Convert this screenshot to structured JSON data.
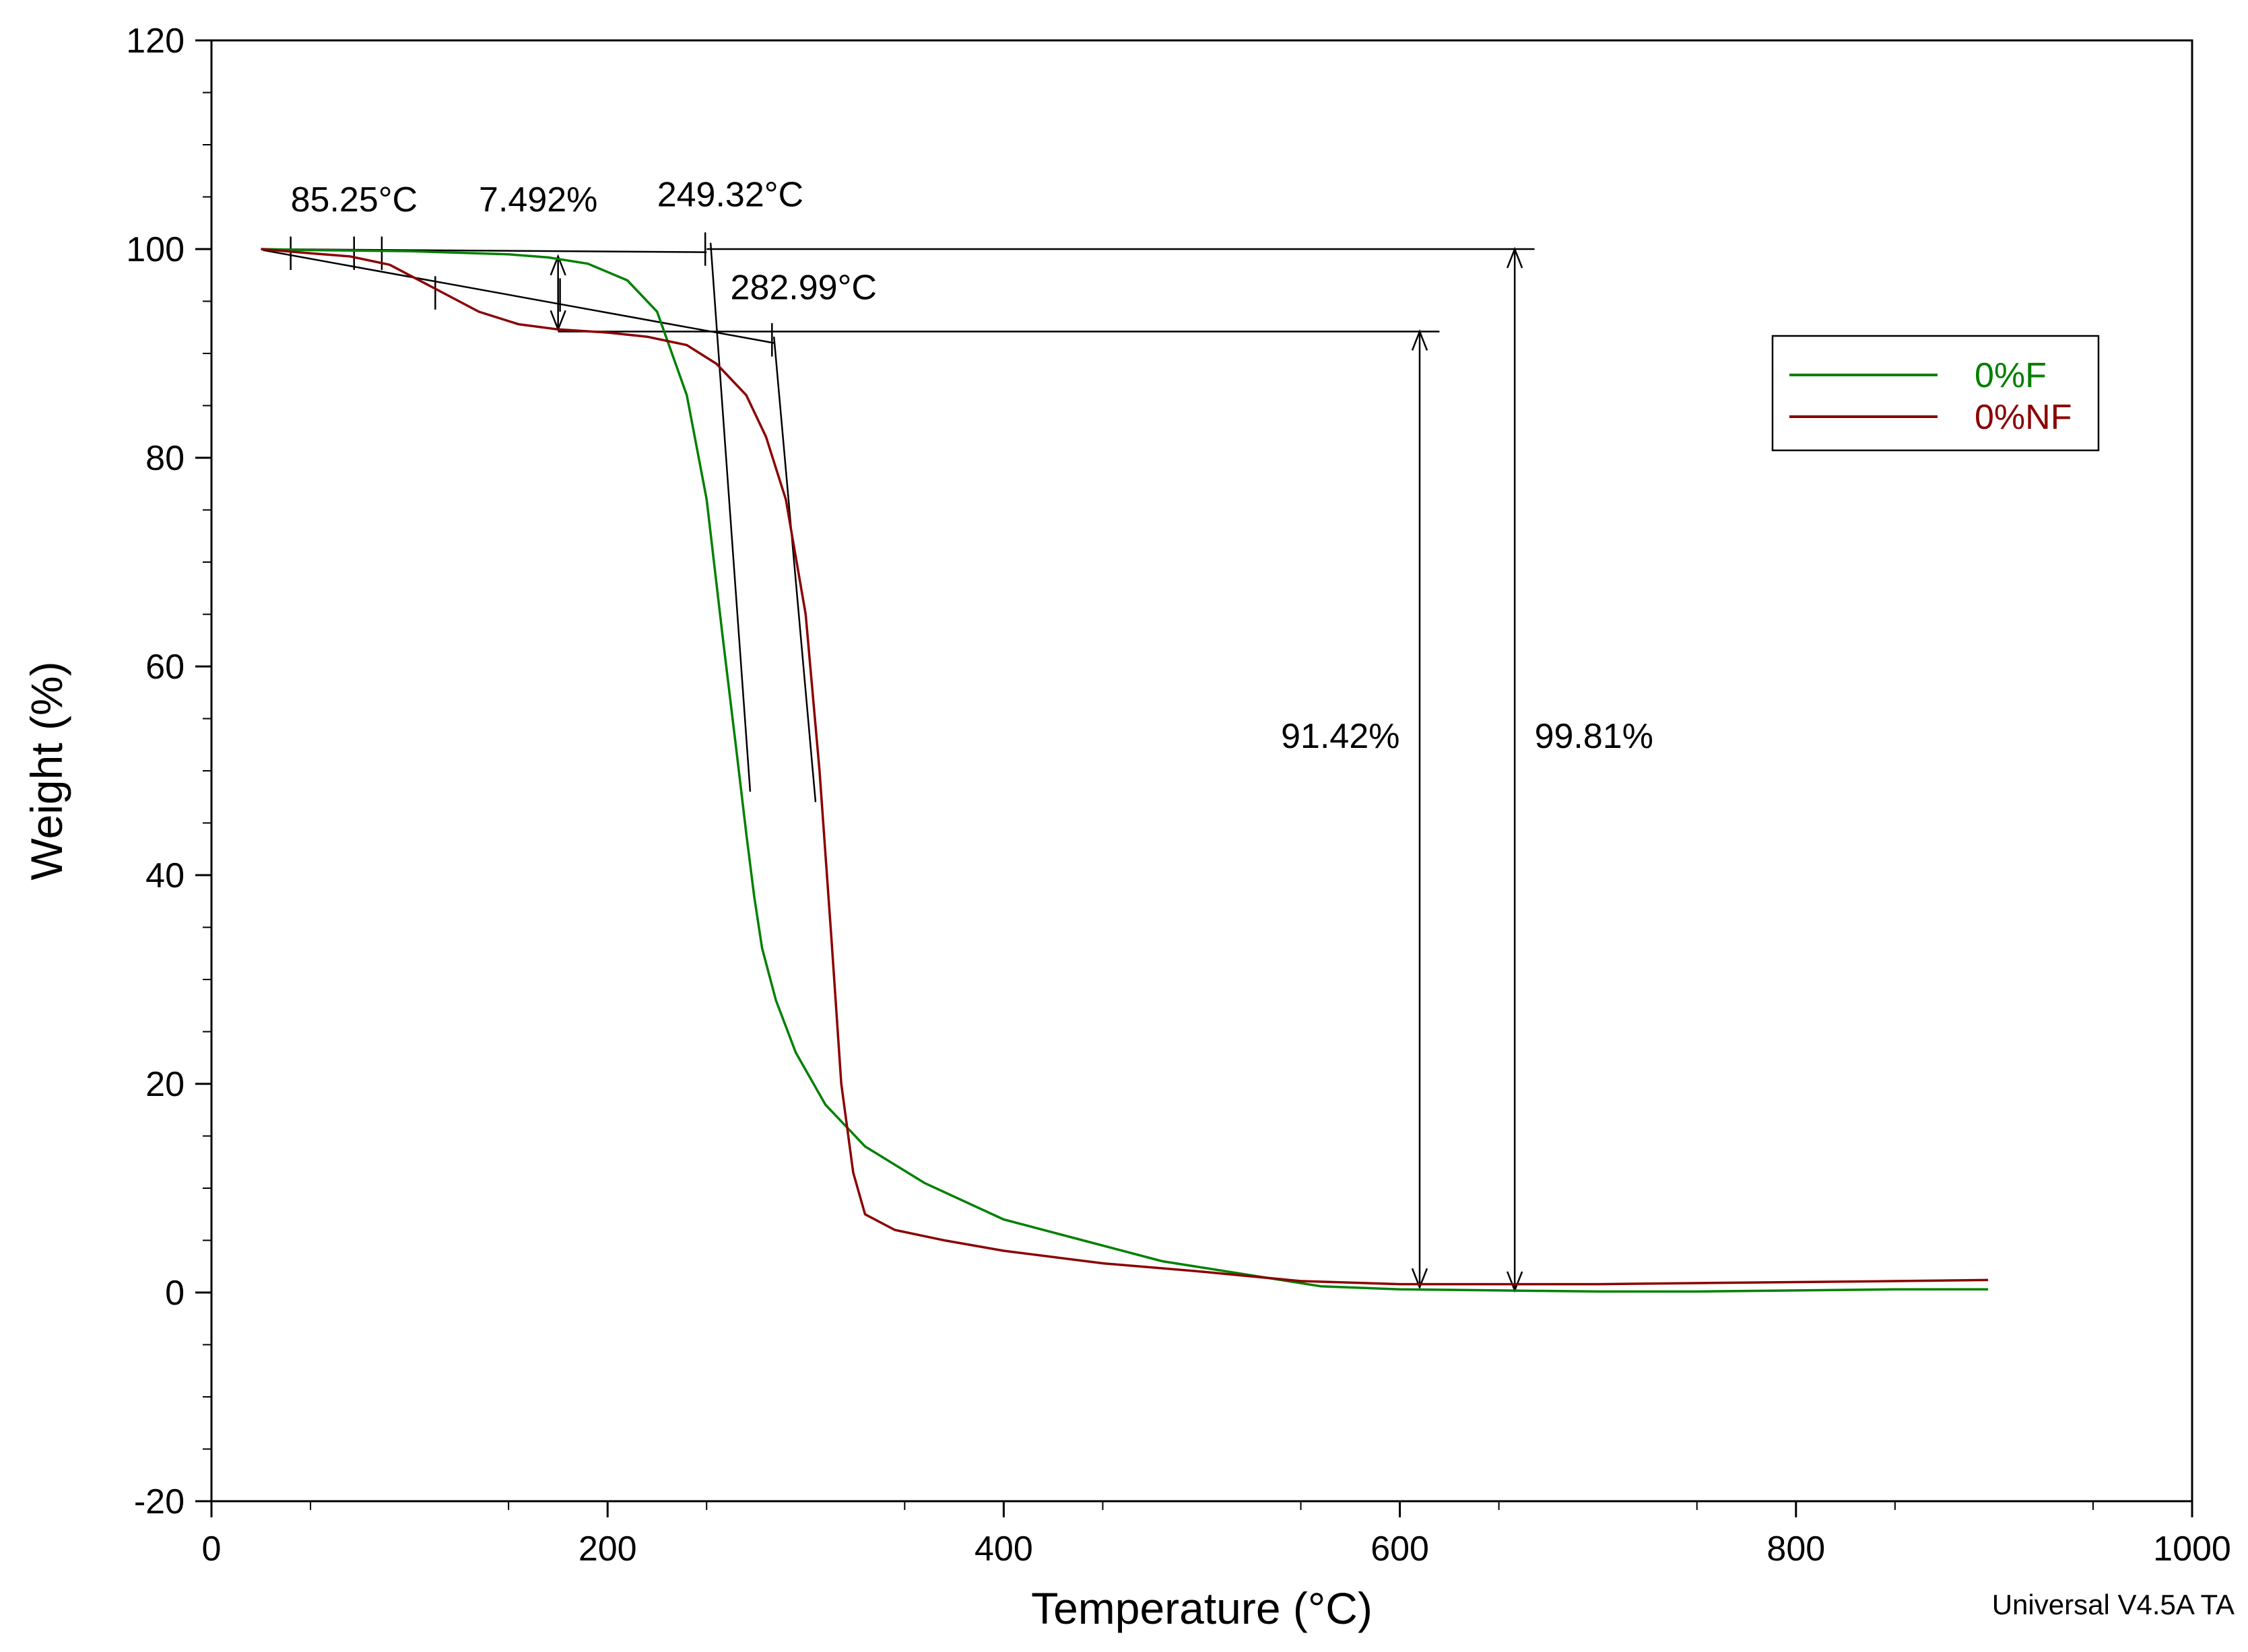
{
  "chart_data": {
    "type": "line",
    "xlabel": "Temperature (°C)",
    "ylabel": "Weight (%)",
    "xlim": [
      0,
      1000
    ],
    "ylim": [
      -20,
      120
    ],
    "x_ticks": [
      0,
      200,
      400,
      600,
      800,
      1000
    ],
    "y_ticks": [
      -20,
      0,
      20,
      40,
      60,
      80,
      100,
      120
    ],
    "grid": false,
    "legend_position": "top-right",
    "series": [
      {
        "name": "0%F",
        "color": "#008000",
        "x": [
          25,
          50,
          100,
          150,
          170,
          190,
          210,
          225,
          240,
          250,
          258,
          265,
          270,
          274,
          278,
          285,
          295,
          310,
          330,
          360,
          400,
          440,
          480,
          520,
          560,
          600,
          650,
          700,
          750,
          800,
          850,
          897
        ],
        "y": [
          100,
          99.9,
          99.8,
          99.5,
          99.2,
          98.6,
          97.0,
          94.0,
          86.0,
          76.0,
          63.0,
          52.0,
          44.0,
          38.0,
          33.0,
          28.0,
          23.0,
          18.0,
          14.0,
          10.5,
          7.0,
          5.0,
          3.0,
          1.8,
          0.6,
          0.3,
          0.2,
          0.1,
          0.1,
          0.2,
          0.3,
          0.3
        ]
      },
      {
        "name": "0%NF",
        "color": "#8b0000",
        "x": [
          25,
          50,
          70,
          90,
          100,
          115,
          135,
          155,
          175,
          200,
          220,
          240,
          255,
          270,
          280,
          290,
          300,
          307,
          313,
          318,
          324,
          330,
          345,
          370,
          400,
          450,
          500,
          550,
          600,
          650,
          700,
          750,
          800,
          850,
          897
        ],
        "y": [
          100,
          99.6,
          99.3,
          98.5,
          97.5,
          96.0,
          94.0,
          92.8,
          92.3,
          92.0,
          91.6,
          90.8,
          89.0,
          86.0,
          82.0,
          76.0,
          65.0,
          50.0,
          34.0,
          20.0,
          11.5,
          7.5,
          6.0,
          5.0,
          4.0,
          2.8,
          2.0,
          1.1,
          0.8,
          0.8,
          0.8,
          0.9,
          1.0,
          1.1,
          1.2
        ]
      }
    ],
    "annotations": [
      {
        "text": "85.25°C",
        "x": 40,
        "y": 103.6
      },
      {
        "text": "7.492%",
        "x": 135,
        "y": 103.6
      },
      {
        "text": "249.32°C",
        "x": 225,
        "y": 104.1
      },
      {
        "text": "282.99°C",
        "x": 262,
        "y": 95.2
      },
      {
        "text": "91.42%",
        "x": 540,
        "y": 52.2
      },
      {
        "text": "99.81%",
        "x": 668,
        "y": 52.2
      }
    ],
    "footer": "Universal V4.5A TA"
  }
}
